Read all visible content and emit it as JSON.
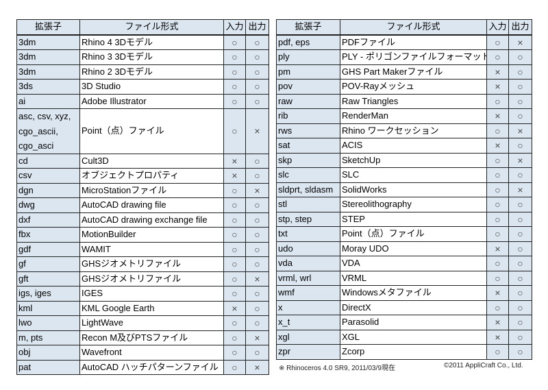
{
  "headers": {
    "ext": "拡張子",
    "format": "ファイル形式",
    "input": "入力",
    "output": "出力"
  },
  "symbols": {
    "yes": "○",
    "no": "×"
  },
  "left_rows": [
    {
      "ext": "3dm",
      "format": "Rhino 4 3Dモデル",
      "in": "○",
      "out": "○"
    },
    {
      "ext": "3dm",
      "format": "Rhino 3 3Dモデル",
      "in": "○",
      "out": "○"
    },
    {
      "ext": "3dm",
      "format": "Rhino 2 3Dモデル",
      "in": "○",
      "out": "○"
    },
    {
      "ext": "3ds",
      "format": "3D Studio",
      "in": "○",
      "out": "○"
    },
    {
      "ext": "ai",
      "format": "Adobe Illustrator",
      "in": "○",
      "out": "○"
    },
    {
      "ext": "asc, csv, xyz, cgo_ascii, cgo_asci",
      "format": "Point（点）ファイル",
      "in": "○",
      "out": "×",
      "multi": true
    },
    {
      "ext": "cd",
      "format": "Cult3D",
      "in": "×",
      "out": "○"
    },
    {
      "ext": "csv",
      "format": "オブジェクトプロパティ",
      "in": "×",
      "out": "○"
    },
    {
      "ext": "dgn",
      "format": "MicroStationファイル",
      "in": "○",
      "out": "×"
    },
    {
      "ext": "dwg",
      "format": "AutoCAD  drawing file",
      "in": "○",
      "out": "○"
    },
    {
      "ext": "dxf",
      "format": "AutoCAD drawing exchange file",
      "in": "○",
      "out": "○"
    },
    {
      "ext": "fbx",
      "format": "MotionBuilder",
      "in": "○",
      "out": "○"
    },
    {
      "ext": "gdf",
      "format": "WAMIT",
      "in": "○",
      "out": "○"
    },
    {
      "ext": "gf",
      "format": "GHSジオメトリファイル",
      "in": "○",
      "out": "○"
    },
    {
      "ext": "gft",
      "format": "GHSジオメトリファイル",
      "in": "○",
      "out": "×"
    },
    {
      "ext": "igs, iges",
      "format": "IGES",
      "in": "○",
      "out": "○"
    },
    {
      "ext": "kml",
      "format": "KML Google Earth",
      "in": "×",
      "out": "○"
    },
    {
      "ext": "lwo",
      "format": "LightWave",
      "in": "○",
      "out": "○"
    },
    {
      "ext": "m, pts",
      "format": "Recon M及びPTSファイル",
      "in": "○",
      "out": "×"
    },
    {
      "ext": "obj",
      "format": "Wavefront",
      "in": "○",
      "out": "○"
    },
    {
      "ext": "pat",
      "format": "AutoCAD ハッチパターンファイル",
      "in": "○",
      "out": "×"
    }
  ],
  "right_rows": [
    {
      "ext": "pdf, eps",
      "format": "PDFファイル",
      "in": "○",
      "out": "×"
    },
    {
      "ext": "ply",
      "format": "PLY - ポリゴンファイルフォーマット",
      "in": "○",
      "out": "○"
    },
    {
      "ext": "pm",
      "format": "GHS Part Makerファイル",
      "in": "×",
      "out": "○"
    },
    {
      "ext": "pov",
      "format": "POV-Rayメッシュ",
      "in": "×",
      "out": "○"
    },
    {
      "ext": "raw",
      "format": "Raw Triangles",
      "in": "○",
      "out": "○"
    },
    {
      "ext": "rib",
      "format": "RenderMan",
      "in": "×",
      "out": "○"
    },
    {
      "ext": "rws",
      "format": "Rhino ワークセッション",
      "in": "○",
      "out": "×"
    },
    {
      "ext": "sat",
      "format": "ACIS",
      "in": "×",
      "out": "○"
    },
    {
      "ext": "skp",
      "format": "SketchUp",
      "in": "○",
      "out": "×"
    },
    {
      "ext": "slc",
      "format": "SLC",
      "in": "○",
      "out": "○"
    },
    {
      "ext": "sldprt, sldasm",
      "format": "SolidWorks",
      "in": "○",
      "out": "×"
    },
    {
      "ext": "stl",
      "format": "Stereolithography",
      "in": "○",
      "out": "○"
    },
    {
      "ext": "stp, step",
      "format": "STEP",
      "in": "○",
      "out": "○"
    },
    {
      "ext": "txt",
      "format": "Point（点）ファイル",
      "in": "○",
      "out": "○"
    },
    {
      "ext": "udo",
      "format": "Moray UDO",
      "in": "×",
      "out": "○"
    },
    {
      "ext": "vda",
      "format": "VDA",
      "in": "○",
      "out": "○"
    },
    {
      "ext": "vrml, wrl",
      "format": "VRML",
      "in": "○",
      "out": "○"
    },
    {
      "ext": "wmf",
      "format": "Windowsメタファイル",
      "in": "×",
      "out": "○"
    },
    {
      "ext": "x",
      "format": "DirectX",
      "in": "○",
      "out": "○"
    },
    {
      "ext": "x_t",
      "format": "Parasolid",
      "in": "×",
      "out": "○"
    },
    {
      "ext": "xgl",
      "format": "XGL",
      "in": "×",
      "out": "○"
    },
    {
      "ext": "zpr",
      "format": "Zcorp",
      "in": "○",
      "out": "○"
    }
  ],
  "footer": {
    "note": "※ Rhinoceros 4.0 SR9, 2011/03/9現在",
    "copyright": "©2011 AppliCraft Co., Ltd."
  }
}
